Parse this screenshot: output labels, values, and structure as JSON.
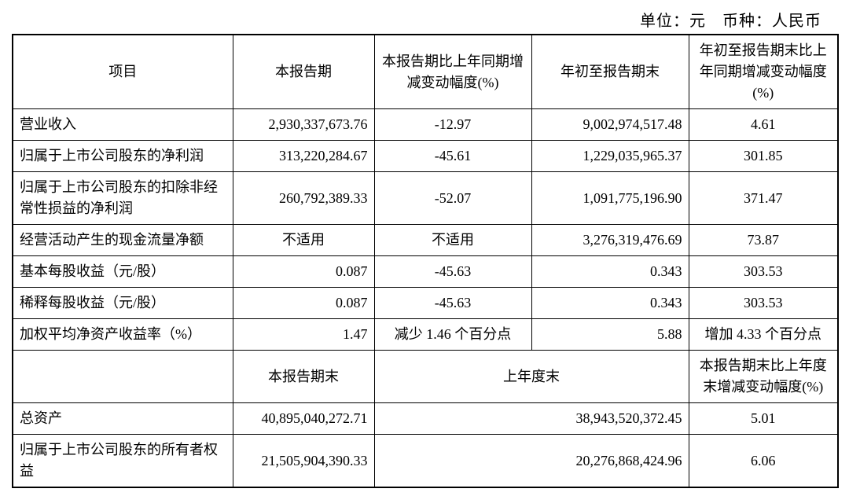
{
  "header": {
    "unit_line": "单位：元　币种：人民币"
  },
  "table1": {
    "cols": {
      "item": "项目",
      "current": "本报告期",
      "yoy_change": "本报告期比上年同期增减变动幅度(%)",
      "ytd": "年初至报告期末",
      "ytd_yoy": "年初至报告期末比上年同期增减变动幅度(%)"
    },
    "rows": [
      {
        "label": "营业收入",
        "current": "2,930,337,673.76",
        "yoy": "-12.97",
        "ytd": "9,002,974,517.48",
        "ytd_yoy": "4.61"
      },
      {
        "label": "归属于上市公司股东的净利润",
        "current": "313,220,284.67",
        "yoy": "-45.61",
        "ytd": "1,229,035,965.37",
        "ytd_yoy": "301.85"
      },
      {
        "label": "归属于上市公司股东的扣除非经常性损益的净利润",
        "current": "260,792,389.33",
        "yoy": "-52.07",
        "ytd": "1,091,775,196.90",
        "ytd_yoy": "371.47"
      },
      {
        "label": "经营活动产生的现金流量净额",
        "current": "不适用",
        "yoy": "不适用",
        "ytd": "3,276,319,476.69",
        "ytd_yoy": "73.87",
        "current_center": true,
        "yoy_center": true
      },
      {
        "label": "基本每股收益（元/股）",
        "current": "0.087",
        "yoy": "-45.63",
        "ytd": "0.343",
        "ytd_yoy": "303.53"
      },
      {
        "label": "稀释每股收益（元/股）",
        "current": "0.087",
        "yoy": "-45.63",
        "ytd": "0.343",
        "ytd_yoy": "303.53"
      },
      {
        "label": "加权平均净资产收益率（%）",
        "current": "1.47",
        "yoy": "减少 1.46 个百分点",
        "ytd": "5.88",
        "ytd_yoy": "增加 4.33 个百分点",
        "yoy_center": true,
        "ytd_yoy_center": true
      }
    ]
  },
  "table2": {
    "cols": {
      "current_end": "本报告期末",
      "prev_end": "上年度末",
      "change": "本报告期末比上年度末增减变动幅度(%)"
    },
    "rows": [
      {
        "label": "总资产",
        "current_end": "40,895,040,272.71",
        "prev_end": "38,943,520,372.45",
        "change": "5.01"
      },
      {
        "label": "归属于上市公司股东的所有者权益",
        "current_end": "21,505,904,390.33",
        "prev_end": "20,276,868,424.96",
        "change": "6.06"
      }
    ]
  }
}
